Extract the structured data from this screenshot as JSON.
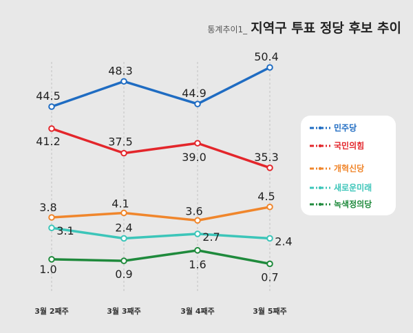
{
  "title": {
    "prefix": "통계추이1_",
    "main": "지역구 투표 정당 후보 추이"
  },
  "chart_data": {
    "type": "line",
    "title": "통계추이1_지역구 투표 정당 후보 추이",
    "categories": [
      "3월 2째주",
      "3월 3째주",
      "3월 4째주",
      "3월 5째주"
    ],
    "series": [
      {
        "name": "민주당",
        "color": "#1f6cc2",
        "values": [
          44.5,
          48.3,
          44.9,
          50.4
        ]
      },
      {
        "name": "국민의힘",
        "color": "#e3262b",
        "values": [
          41.2,
          37.5,
          39.0,
          35.3
        ]
      },
      {
        "name": "개혁신당",
        "color": "#f0862c",
        "values": [
          3.8,
          4.1,
          3.6,
          4.5
        ]
      },
      {
        "name": "새로운미래",
        "color": "#3cc5b9",
        "values": [
          3.1,
          2.4,
          2.7,
          2.4
        ]
      },
      {
        "name": "녹색정의당",
        "color": "#1f8a3c",
        "values": [
          1.0,
          0.9,
          1.6,
          0.7
        ]
      }
    ],
    "legend": {
      "position": "right"
    },
    "grid": false
  }
}
